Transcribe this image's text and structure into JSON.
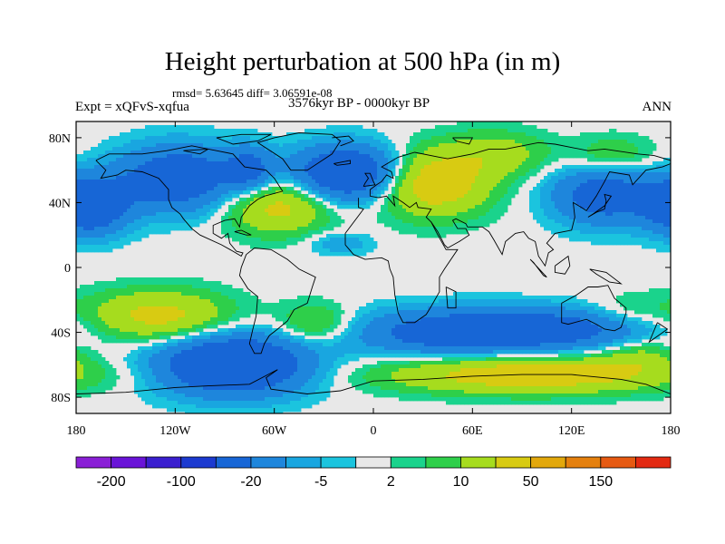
{
  "header": {
    "title": "Height perturbation at 500 hPa (in m)",
    "stats": "rmsd= 5.63645 diff= 3.06591e-08",
    "experiment": "Expt = xQFvS-xqfua",
    "period": "3576kyr BP - 0000kyr BP",
    "season": "ANN"
  },
  "axes": {
    "lat_ticks": [
      {
        "value": 80,
        "label": "80N"
      },
      {
        "value": 40,
        "label": "40N"
      },
      {
        "value": 0,
        "label": "0"
      },
      {
        "value": -40,
        "label": "40S"
      },
      {
        "value": -80,
        "label": "80S"
      }
    ],
    "lon_ticks": [
      {
        "value": -180,
        "label": "180"
      },
      {
        "value": -120,
        "label": "120W"
      },
      {
        "value": -60,
        "label": "60W"
      },
      {
        "value": 0,
        "label": "0"
      },
      {
        "value": 60,
        "label": "60E"
      },
      {
        "value": 120,
        "label": "120E"
      },
      {
        "value": 180,
        "label": "180"
      }
    ],
    "lon_range": [
      -180,
      180
    ],
    "lat_range": [
      -90,
      90
    ]
  },
  "colorbar": {
    "colors": [
      "#8a1fd6",
      "#6a14d8",
      "#3a1fcf",
      "#1c3ad0",
      "#1766d6",
      "#1e86dc",
      "#19a6e0",
      "#1bc4de",
      "#e8e8e8",
      "#1ad38c",
      "#2ecf4a",
      "#a6dc1e",
      "#d8cb12",
      "#e2a80c",
      "#e5800e",
      "#e65a12",
      "#e32a12"
    ],
    "labels": [
      {
        "boundary": 1,
        "text": "-200"
      },
      {
        "boundary": 3,
        "text": "-100"
      },
      {
        "boundary": 5,
        "text": "-20"
      },
      {
        "boundary": 7,
        "text": "-5"
      },
      {
        "boundary": 9,
        "text": "2"
      },
      {
        "boundary": 11,
        "text": "10"
      },
      {
        "boundary": 13,
        "text": "50"
      },
      {
        "boundary": 15,
        "text": "150"
      }
    ]
  },
  "field": {
    "background_color": "#e8e8e8",
    "anomaly_centers": [
      {
        "lon": -172,
        "lat": 38,
        "amp": -38,
        "slon": 16,
        "slat": 12
      },
      {
        "lon": -118,
        "lat": 55,
        "amp": -34,
        "slon": 26,
        "slat": 14
      },
      {
        "lon": -75,
        "lat": 60,
        "amp": -22,
        "slon": 10,
        "slat": 10
      },
      {
        "lon": -58,
        "lat": 38,
        "amp": 25,
        "slon": 22,
        "slat": 12
      },
      {
        "lon": -15,
        "lat": 58,
        "amp": -42,
        "slon": 24,
        "slat": 12
      },
      {
        "lon": -20,
        "lat": 15,
        "amp": -9,
        "slon": 14,
        "slat": 5
      },
      {
        "lon": 35,
        "lat": 52,
        "amp": 32,
        "slon": 24,
        "slat": 14
      },
      {
        "lon": 75,
        "lat": 70,
        "amp": 14,
        "slon": 22,
        "slat": 10
      },
      {
        "lon": 140,
        "lat": 45,
        "amp": -30,
        "slon": 22,
        "slat": 13
      },
      {
        "lon": 145,
        "lat": 68,
        "amp": 12,
        "slon": 18,
        "slat": 9
      },
      {
        "lon": -130,
        "lat": -30,
        "amp": 25,
        "slon": 30,
        "slat": 11
      },
      {
        "lon": -85,
        "lat": -60,
        "amp": -45,
        "slon": 32,
        "slat": 13
      },
      {
        "lon": -35,
        "lat": -35,
        "amp": 14,
        "slon": 16,
        "slat": 9
      },
      {
        "lon": 50,
        "lat": -40,
        "amp": -30,
        "slon": 42,
        "slat": 10
      },
      {
        "lon": 120,
        "lat": -38,
        "amp": -22,
        "slon": 40,
        "slat": 9
      },
      {
        "lon": 95,
        "lat": -66,
        "amp": 30,
        "slon": 60,
        "slat": 8
      },
      {
        "lon": 160,
        "lat": -54,
        "amp": 11,
        "slon": 16,
        "slat": 8
      },
      {
        "lon": 155,
        "lat": -28,
        "amp": 8,
        "slon": 18,
        "slat": 8
      }
    ],
    "contour_levels": [
      -200,
      -150,
      -100,
      -50,
      -20,
      -10,
      -5,
      -2,
      2,
      5,
      10,
      20,
      50,
      100,
      150,
      200
    ]
  },
  "coastlines": [
    [
      [
        -168,
        66
      ],
      [
        -160,
        70
      ],
      [
        -140,
        70
      ],
      [
        -125,
        72
      ],
      [
        -110,
        75
      ],
      [
        -95,
        72
      ],
      [
        -85,
        70
      ],
      [
        -78,
        62
      ],
      [
        -65,
        60
      ],
      [
        -60,
        55
      ],
      [
        -55,
        47
      ],
      [
        -66,
        44
      ],
      [
        -70,
        42
      ],
      [
        -75,
        38
      ],
      [
        -80,
        31
      ],
      [
        -81,
        25
      ],
      [
        -84,
        30
      ],
      [
        -90,
        29
      ],
      [
        -97,
        26
      ],
      [
        -97,
        21
      ],
      [
        -92,
        18
      ],
      [
        -88,
        21
      ],
      [
        -87,
        15
      ],
      [
        -83,
        10
      ],
      [
        -79,
        9
      ],
      [
        -80,
        7
      ],
      [
        -85,
        10
      ],
      [
        -92,
        14
      ],
      [
        -105,
        20
      ],
      [
        -110,
        24
      ],
      [
        -115,
        30
      ],
      [
        -117,
        33
      ],
      [
        -122,
        37
      ],
      [
        -124,
        42
      ],
      [
        -124,
        48
      ],
      [
        -130,
        55
      ],
      [
        -140,
        59
      ],
      [
        -150,
        60
      ],
      [
        -155,
        57
      ],
      [
        -165,
        55
      ],
      [
        -162,
        60
      ],
      [
        -165,
        63
      ],
      [
        -168,
        66
      ]
    ],
    [
      [
        -77,
        8
      ],
      [
        -72,
        12
      ],
      [
        -62,
        11
      ],
      [
        -52,
        5
      ],
      [
        -45,
        -1
      ],
      [
        -35,
        -6
      ],
      [
        -37,
        -12
      ],
      [
        -40,
        -22
      ],
      [
        -48,
        -26
      ],
      [
        -52,
        -33
      ],
      [
        -58,
        -38
      ],
      [
        -63,
        -42
      ],
      [
        -66,
        -47
      ],
      [
        -68,
        -53
      ],
      [
        -72,
        -53
      ],
      [
        -75,
        -47
      ],
      [
        -73,
        -38
      ],
      [
        -71,
        -30
      ],
      [
        -70,
        -18
      ],
      [
        -76,
        -13
      ],
      [
        -81,
        -5
      ],
      [
        -80,
        0
      ],
      [
        -77,
        8
      ]
    ],
    [
      [
        -50,
        60
      ],
      [
        -40,
        60
      ],
      [
        -25,
        70
      ],
      [
        -20,
        78
      ],
      [
        -25,
        82
      ],
      [
        -45,
        83
      ],
      [
        -60,
        80
      ],
      [
        -70,
        77
      ],
      [
        -55,
        67
      ],
      [
        -50,
        60
      ]
    ],
    [
      [
        -9,
        43
      ],
      [
        -9,
        37
      ],
      [
        -6,
        36
      ],
      [
        -17,
        21
      ],
      [
        -17,
        14
      ],
      [
        -12,
        8
      ],
      [
        -5,
        5
      ],
      [
        5,
        6
      ],
      [
        9,
        4
      ],
      [
        10,
        -1
      ],
      [
        12,
        -6
      ],
      [
        13,
        -17
      ],
      [
        15,
        -28
      ],
      [
        18,
        -34
      ],
      [
        25,
        -34
      ],
      [
        32,
        -29
      ],
      [
        35,
        -24
      ],
      [
        40,
        -15
      ],
      [
        40,
        -6
      ],
      [
        43,
        -1
      ],
      [
        51,
        11
      ],
      [
        44,
        11
      ],
      [
        39,
        20
      ],
      [
        35,
        28
      ],
      [
        32,
        31
      ],
      [
        35,
        36
      ],
      [
        27,
        37
      ],
      [
        26,
        40
      ],
      [
        22,
        37
      ],
      [
        18,
        40
      ],
      [
        12,
        44
      ],
      [
        13,
        38
      ],
      [
        8,
        44
      ],
      [
        3,
        43
      ],
      [
        -2,
        44
      ],
      [
        -2,
        48
      ],
      [
        2,
        51
      ],
      [
        5,
        53
      ],
      [
        8,
        57
      ],
      [
        12,
        55
      ],
      [
        11,
        59
      ],
      [
        5,
        62
      ],
      [
        15,
        68
      ],
      [
        25,
        71
      ],
      [
        40,
        68
      ],
      [
        45,
        67
      ],
      [
        60,
        70
      ],
      [
        70,
        73
      ],
      [
        80,
        73
      ],
      [
        100,
        77
      ],
      [
        110,
        76
      ],
      [
        130,
        72
      ],
      [
        140,
        73
      ],
      [
        160,
        70
      ],
      [
        170,
        69
      ],
      [
        180,
        66
      ]
    ],
    [
      [
        180,
        64
      ],
      [
        175,
        62
      ],
      [
        165,
        60
      ],
      [
        157,
        51
      ],
      [
        155,
        57
      ],
      [
        143,
        59
      ],
      [
        140,
        53
      ],
      [
        135,
        44
      ],
      [
        129,
        35
      ],
      [
        126,
        37
      ],
      [
        121,
        40
      ],
      [
        122,
        31
      ],
      [
        120,
        23
      ],
      [
        110,
        21
      ],
      [
        105,
        15
      ],
      [
        109,
        11
      ],
      [
        106,
        9
      ],
      [
        104,
        1
      ],
      [
        100,
        7
      ],
      [
        98,
        16
      ],
      [
        94,
        18
      ],
      [
        91,
        22
      ],
      [
        86,
        21
      ],
      [
        80,
        16
      ],
      [
        78,
        8
      ],
      [
        73,
        17
      ],
      [
        70,
        22
      ],
      [
        66,
        25
      ],
      [
        57,
        25
      ],
      [
        56,
        27
      ],
      [
        50,
        30
      ],
      [
        48,
        29
      ],
      [
        51,
        24
      ],
      [
        56,
        24
      ],
      [
        58,
        20
      ],
      [
        52,
        16
      ],
      [
        45,
        12
      ],
      [
        43,
        14
      ],
      [
        39,
        22
      ],
      [
        35,
        28
      ]
    ],
    [
      [
        114,
        -22
      ],
      [
        114,
        -34
      ],
      [
        118,
        -35
      ],
      [
        129,
        -32
      ],
      [
        135,
        -35
      ],
      [
        140,
        -38
      ],
      [
        146,
        -39
      ],
      [
        150,
        -37
      ],
      [
        153,
        -28
      ],
      [
        153,
        -25
      ],
      [
        146,
        -19
      ],
      [
        142,
        -11
      ],
      [
        136,
        -12
      ],
      [
        130,
        -12
      ],
      [
        123,
        -17
      ],
      [
        114,
        -22
      ]
    ],
    [
      [
        -6,
        50
      ],
      [
        -5,
        52
      ],
      [
        -3,
        55
      ],
      [
        -5,
        58
      ],
      [
        -2,
        58
      ],
      [
        0,
        53
      ],
      [
        1,
        51
      ],
      [
        -6,
        50
      ]
    ],
    [
      [
        130,
        31
      ],
      [
        135,
        34
      ],
      [
        140,
        36
      ],
      [
        141,
        41
      ],
      [
        140,
        45
      ],
      [
        144,
        44
      ],
      [
        140,
        38
      ],
      [
        133,
        33
      ],
      [
        130,
        31
      ]
    ],
    [
      [
        95,
        5
      ],
      [
        105,
        -6
      ],
      [
        103,
        -5
      ],
      [
        97,
        3
      ],
      [
        95,
        5
      ]
    ],
    [
      [
        110,
        1
      ],
      [
        118,
        7
      ],
      [
        119,
        1
      ],
      [
        116,
        -4
      ],
      [
        110,
        -3
      ],
      [
        110,
        1
      ]
    ],
    [
      [
        131,
        -1
      ],
      [
        141,
        -3
      ],
      [
        150,
        -10
      ],
      [
        143,
        -9
      ],
      [
        135,
        -4
      ],
      [
        131,
        -1
      ]
    ],
    [
      [
        44,
        -12
      ],
      [
        50,
        -15
      ],
      [
        50,
        -25
      ],
      [
        45,
        -25
      ],
      [
        44,
        -12
      ]
    ],
    [
      [
        -24,
        64
      ],
      [
        -14,
        66
      ],
      [
        -14,
        64
      ],
      [
        -22,
        63
      ],
      [
        -24,
        64
      ]
    ],
    [
      [
        172,
        -34
      ],
      [
        178,
        -38
      ],
      [
        174,
        -41
      ],
      [
        167,
        -46
      ],
      [
        172,
        -34
      ]
    ],
    [
      [
        -180,
        -78
      ],
      [
        -150,
        -77
      ],
      [
        -120,
        -74
      ],
      [
        -100,
        -73
      ],
      [
        -75,
        -72
      ],
      [
        -60,
        -64
      ],
      [
        -58,
        -63
      ],
      [
        -65,
        -68
      ],
      [
        -62,
        -75
      ],
      [
        -40,
        -78
      ],
      [
        -20,
        -76
      ],
      [
        0,
        -70
      ],
      [
        30,
        -69
      ],
      [
        60,
        -67
      ],
      [
        90,
        -66
      ],
      [
        120,
        -66
      ],
      [
        150,
        -69
      ],
      [
        165,
        -72
      ],
      [
        180,
        -78
      ]
    ],
    [
      [
        -25,
        80
      ],
      [
        -15,
        81
      ],
      [
        -12,
        78
      ],
      [
        -20,
        75
      ]
    ],
    [
      [
        -95,
        80
      ],
      [
        -80,
        82
      ],
      [
        -62,
        82
      ],
      [
        -70,
        78
      ],
      [
        -85,
        76
      ],
      [
        -95,
        80
      ]
    ],
    [
      [
        -115,
        72
      ],
      [
        -100,
        73
      ],
      [
        -105,
        70
      ],
      [
        -115,
        72
      ]
    ],
    [
      [
        -80,
        23
      ],
      [
        -74,
        20
      ],
      [
        -77,
        20
      ],
      [
        -84,
        22
      ],
      [
        -80,
        23
      ]
    ],
    [
      [
        48,
        80
      ],
      [
        60,
        80
      ],
      [
        58,
        76
      ],
      [
        50,
        78
      ],
      [
        48,
        80
      ]
    ]
  ]
}
